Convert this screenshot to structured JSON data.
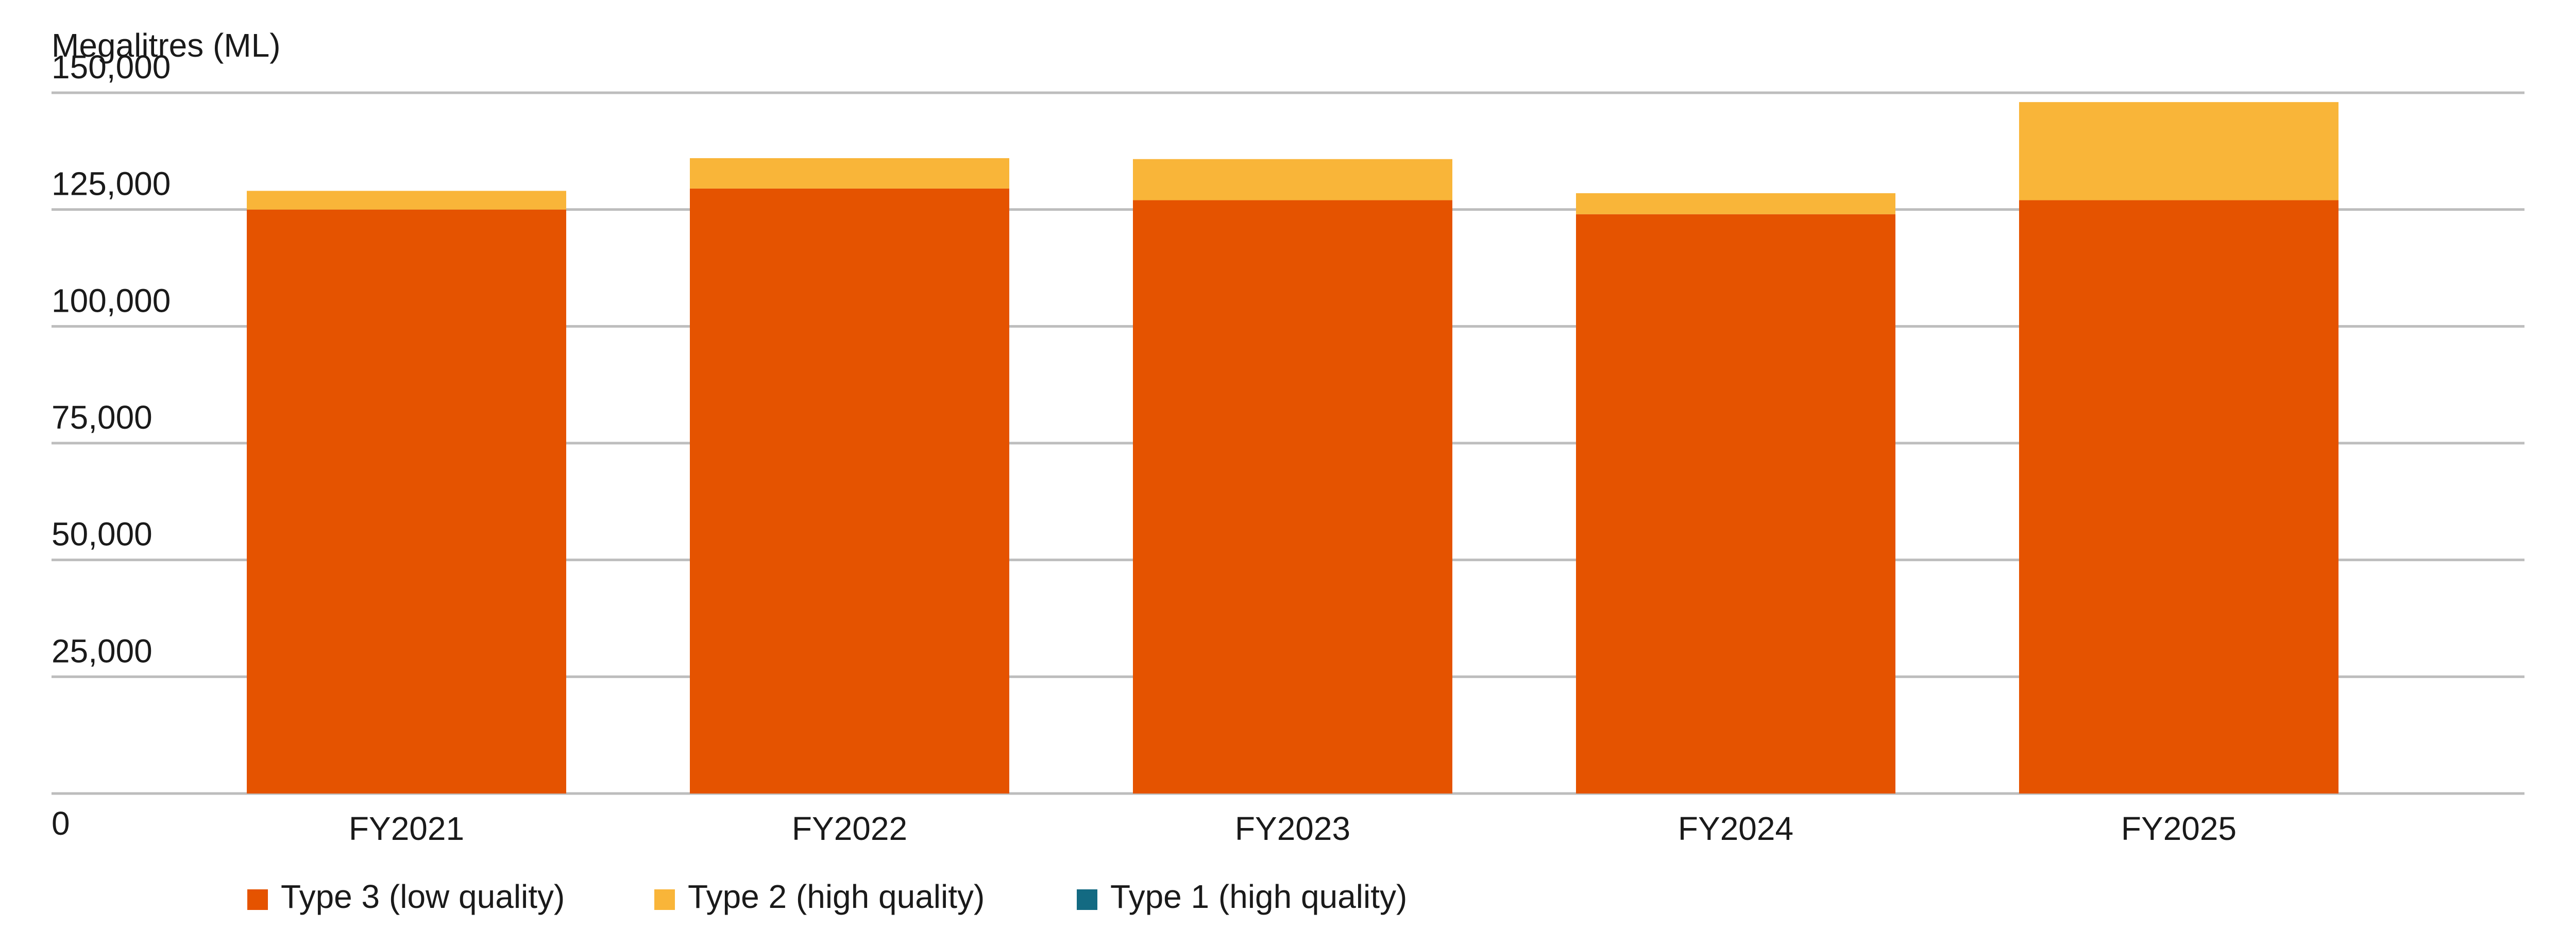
{
  "chart_data": {
    "type": "bar",
    "stacked": true,
    "ylabel": "Megalitres (ML)",
    "ylim": [
      0,
      150000
    ],
    "y_ticks": [
      0,
      25000,
      50000,
      75000,
      100000,
      125000,
      150000
    ],
    "y_tick_labels": [
      "0",
      "25,000",
      "50,000",
      "75,000",
      "100,000",
      "125,000",
      "150,000"
    ],
    "categories": [
      "FY2021",
      "FY2022",
      "FY2023",
      "FY2024",
      "FY2025"
    ],
    "series": [
      {
        "name": "Type 3 (low quality)",
        "color": "#E55300",
        "values": [
          125000,
          129500,
          127000,
          124000,
          127000
        ]
      },
      {
        "name": "Type 2 (high quality)",
        "color": "#F9B539",
        "values": [
          4000,
          6500,
          8800,
          4500,
          21000
        ]
      },
      {
        "name": "Type 1 (high quality)",
        "color": "#136A82",
        "values": [
          0,
          0,
          0,
          0,
          0
        ]
      }
    ],
    "grid": true,
    "legend_position": "bottom-left"
  }
}
